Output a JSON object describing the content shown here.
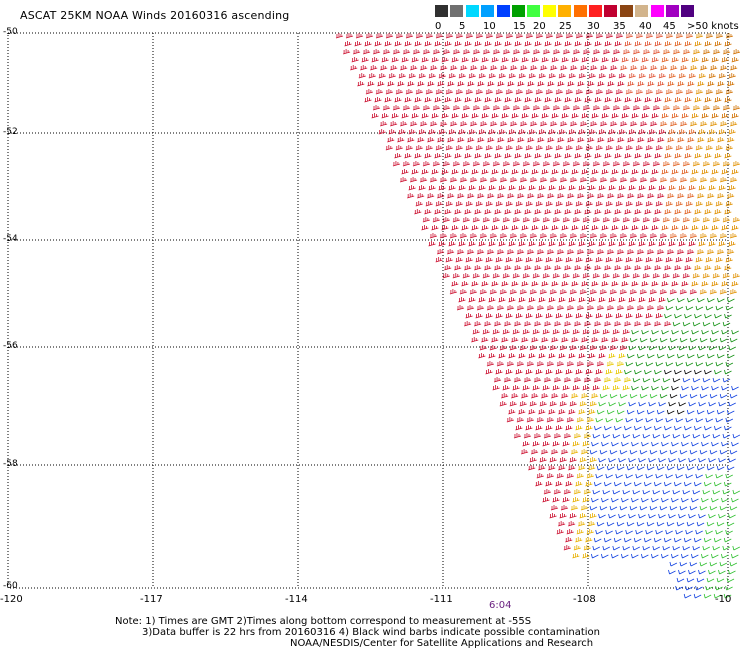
{
  "title": "ASCAT 25KM NOAA Winds 20160316 ascending",
  "colorbar": {
    "colors": [
      "#303030",
      "#707070",
      "#00d8ff",
      "#00a0ff",
      "#0040ff",
      "#00a000",
      "#40ff40",
      "#ffff00",
      "#ffb000",
      "#ff7000",
      "#ff2020",
      "#c00030",
      "#8b4513",
      "#d2b48c",
      "#ff00ff",
      "#a000c0",
      "#500080"
    ],
    "labels": [
      "0",
      "5",
      "10",
      "15",
      "20",
      "25",
      "30",
      "35",
      "40",
      "45",
      ">50 knots"
    ]
  },
  "lat_labels": [
    "-50",
    "-52",
    "-54",
    "-56",
    "-58",
    "-60"
  ],
  "lon_labels": [
    "-120",
    "-117",
    "-114",
    "-111",
    "-108",
    "-10"
  ],
  "time_label": "6:04",
  "notes": [
    "Note: 1) Times are GMT 2)Times along bottom correspond to measurement at -55S",
    "3)Data buffer is 22 hrs from 20160316 4) Black wind barbs indicate possible contamination",
    "NOAA/NESDIS/Center for Satellite Applications and Research"
  ]
}
